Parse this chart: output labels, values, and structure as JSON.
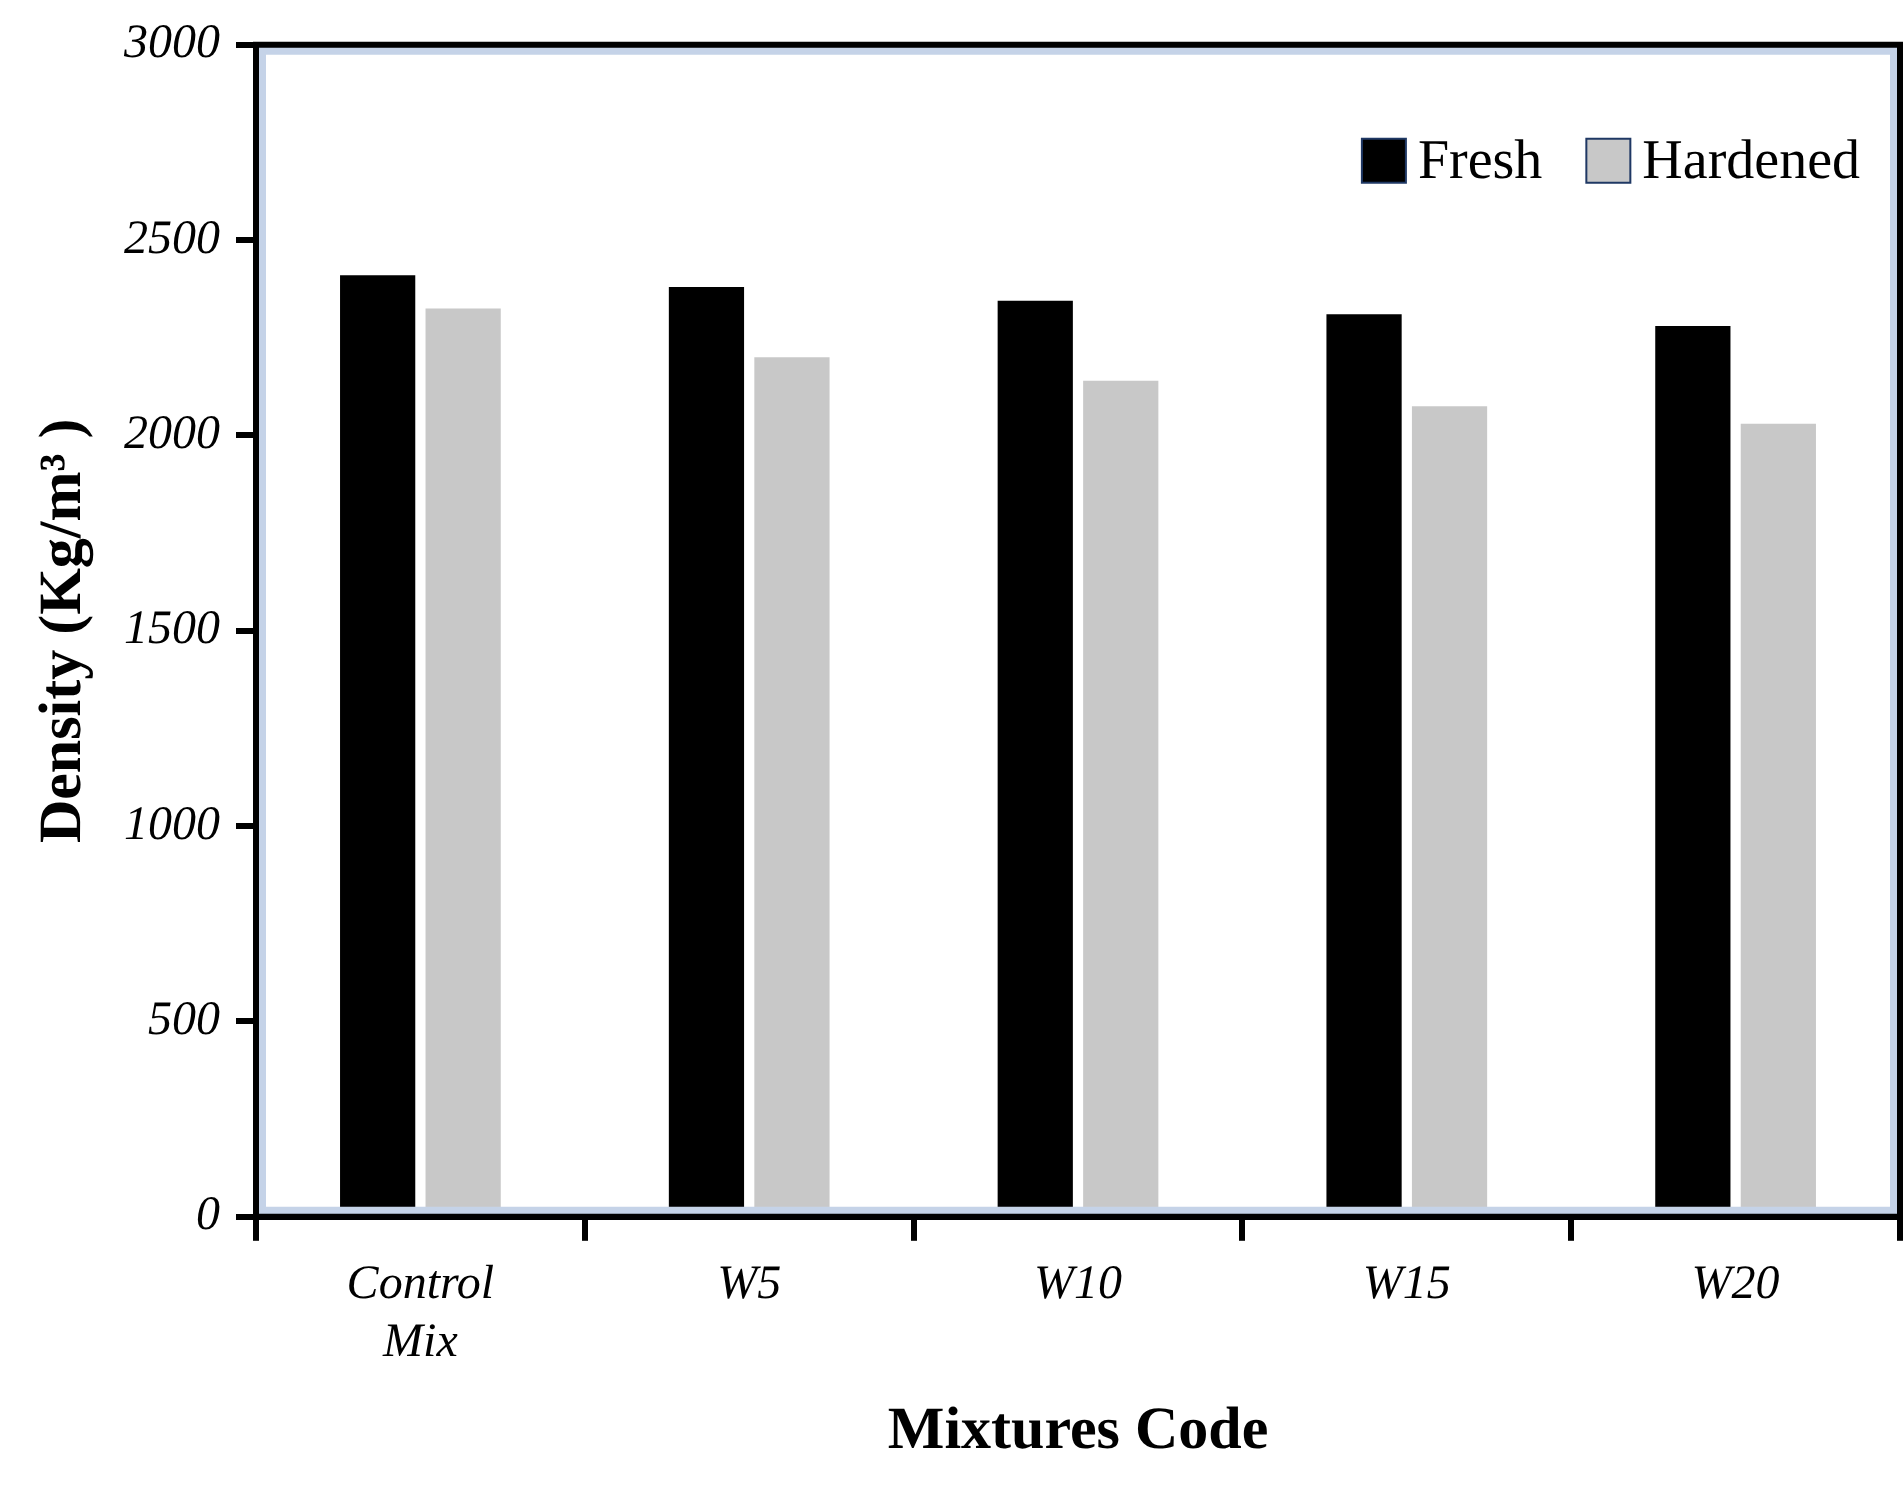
{
  "chart_data": {
    "type": "bar",
    "xlabel": "Mixtures Code",
    "ylabel": "Density (Kg/m³ )",
    "categories": [
      "Control Mix",
      "W5",
      "W10",
      "W15",
      "W20"
    ],
    "series": [
      {
        "name": "Fresh",
        "color": "#000000",
        "values": [
          2410,
          2380,
          2345,
          2310,
          2280
        ]
      },
      {
        "name": "Hardened",
        "color": "#c8c8c8",
        "values": [
          2325,
          2200,
          2140,
          2075,
          2030
        ]
      }
    ],
    "ylim": [
      0,
      3000
    ],
    "yticks": [
      0,
      500,
      1000,
      1500,
      2000,
      2500,
      3000
    ],
    "grid": false,
    "legend": "top right"
  }
}
